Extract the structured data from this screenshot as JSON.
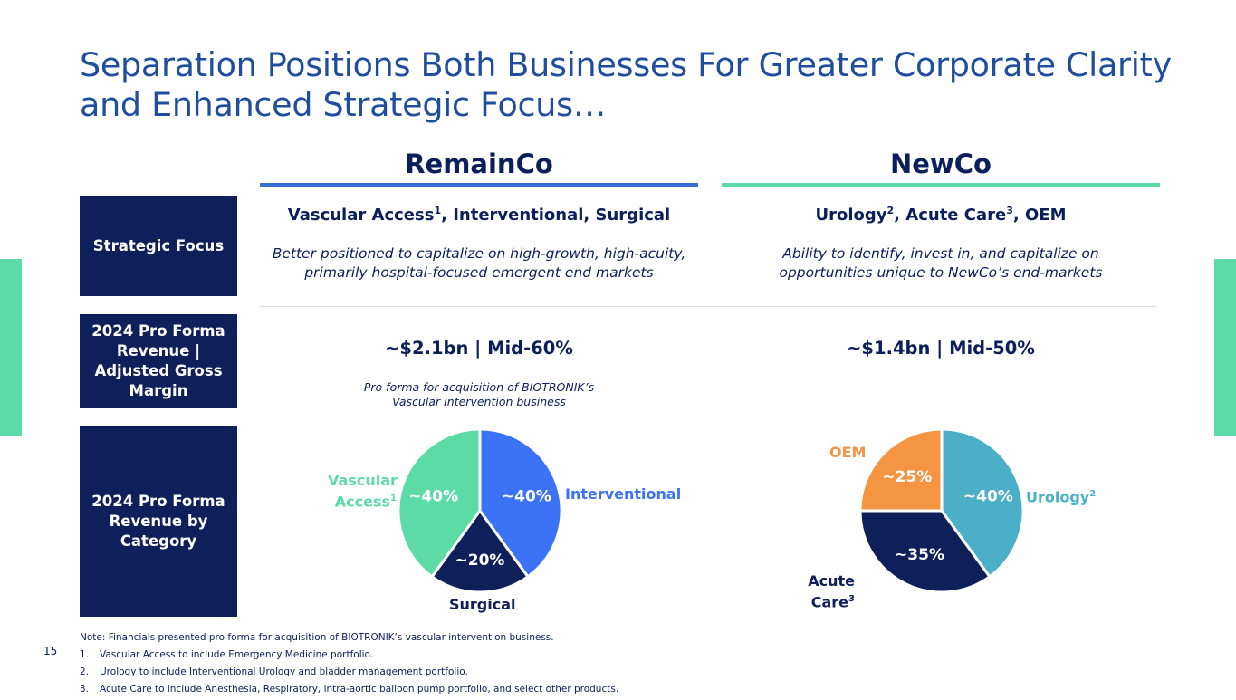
{
  "slide": {
    "title_line1": "Separation Positions Both Businesses For Greater Corporate Clarity",
    "title_line2": "and Enhanced Strategic Focus…",
    "page_number": "15"
  },
  "columns": {
    "remain": "RemainCo",
    "newco": "NewCo"
  },
  "rows": {
    "strategic_focus": "Strategic Focus",
    "revenue": "2024 Pro Forma Revenue | Adjusted Gross Margin",
    "category": "2024 Pro Forma Revenue by Category"
  },
  "remain": {
    "focus_a": "Vascular Access",
    "focus_a_sup": "1",
    "focus_b": ", Interventional, Surgical",
    "desc_line1": "Better positioned to capitalize on high-growth, high-acuity,",
    "desc_line2": "primarily hospital-focused emergent end markets",
    "revenue": "~$2.1bn | Mid-60%",
    "note_line1": "Pro forma for acquisition of BIOTRONIK’s",
    "note_line2": "Vascular Intervention business"
  },
  "newco": {
    "focus_a": "Urology",
    "focus_a_sup": "2",
    "focus_b": ", Acute Care",
    "focus_b_sup": "3",
    "focus_c": ", OEM",
    "desc_line1": "Ability to identify, invest in, and capitalize on",
    "desc_line2": "opportunities unique to NewCo’s end-markets",
    "revenue": "~$1.4bn | Mid-50%"
  },
  "chart_data": [
    {
      "type": "pie",
      "categories": [
        "Interventional",
        "Surgical",
        "Vascular Access"
      ],
      "values": [
        40,
        20,
        40
      ],
      "data_labels": [
        "~40%",
        "~20%",
        "~40%"
      ],
      "label_sups": [
        "",
        "",
        "1"
      ],
      "label_lines": [
        [
          "Interventional"
        ],
        [
          "Surgical"
        ],
        [
          "Vascular",
          "Access"
        ]
      ],
      "colors": [
        "#3b72f6",
        "#0f1f5a",
        "#5cdba6"
      ],
      "label_colors": [
        "#3b72f6",
        "#0f1f5a",
        "#5cdba6"
      ]
    },
    {
      "type": "pie",
      "categories": [
        "Urology",
        "Acute Care",
        "OEM"
      ],
      "values": [
        40,
        35,
        25
      ],
      "data_labels": [
        "~40%",
        "~35%",
        "~25%"
      ],
      "label_sups": [
        "2",
        "3",
        ""
      ],
      "label_lines": [
        [
          "Urology"
        ],
        [
          "Acute",
          "Care"
        ],
        [
          "OEM"
        ]
      ],
      "colors": [
        "#4bafc8",
        "#0f1f5a",
        "#f59443"
      ],
      "label_colors": [
        "#4bafc8",
        "#0f1f5a",
        "#f59443"
      ]
    }
  ],
  "notes": {
    "note0": "Note: Financials presented pro forma for acquisition of BIOTRONIK’s vascular intervention business.",
    "items": [
      {
        "num": "1.",
        "text": "Vascular Access to include Emergency Medicine portfolio."
      },
      {
        "num": "2.",
        "text": "Urology to include Interventional Urology and bladder management portfolio."
      },
      {
        "num": "3.",
        "text": "Acute Care to include Anesthesia, Respiratory, intra-aortic balloon pump portfolio, and select other products."
      }
    ]
  }
}
